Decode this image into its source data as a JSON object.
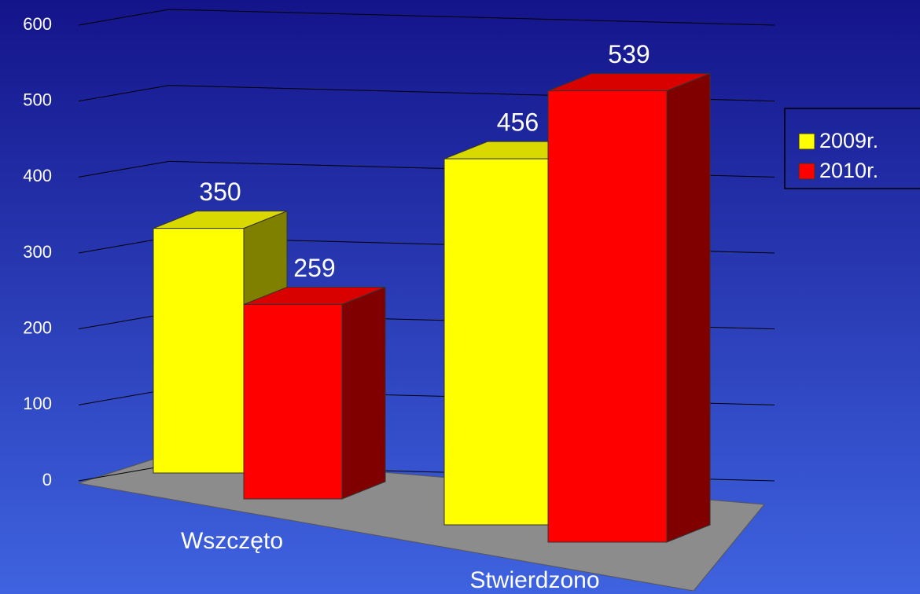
{
  "chart_data": {
    "type": "bar3d",
    "categories": [
      "Wszczęto",
      "Stwierdzono"
    ],
    "series": [
      {
        "name": "2009r.",
        "color": "#ffff00",
        "values": [
          350,
          456
        ]
      },
      {
        "name": "2010r.",
        "color": "#ff0000",
        "values": [
          259,
          539
        ]
      }
    ],
    "ylim": [
      0,
      600
    ],
    "yticks": [
      0,
      100,
      200,
      300,
      400,
      500,
      600
    ],
    "grid": true,
    "legend": "right"
  }
}
